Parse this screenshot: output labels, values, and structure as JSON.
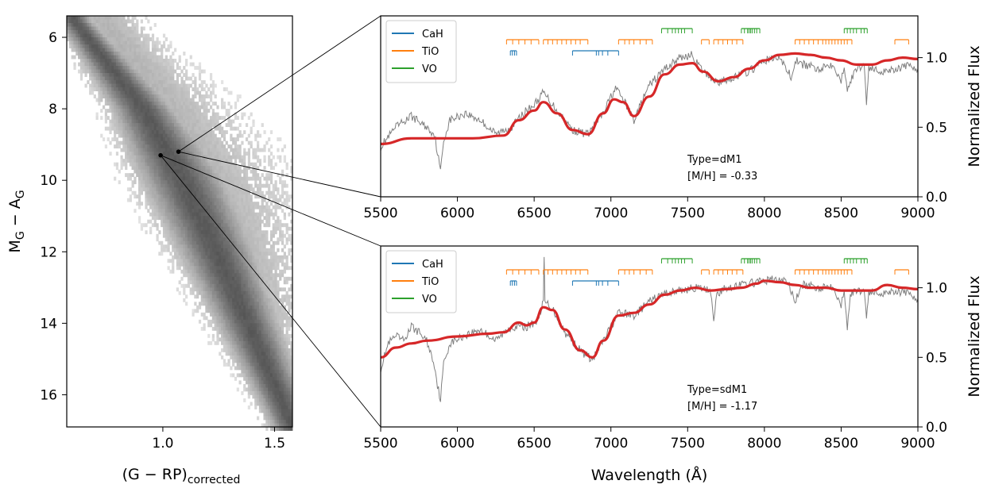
{
  "chart_data": [
    {
      "type": "heatmap",
      "name": "color-magnitude-diagram",
      "xlabel_main": "(G − RP)",
      "xlabel_sub": "corrected",
      "ylabel_main": "M",
      "ylabel_sub1": "G",
      "ylabel_mid": " − A",
      "ylabel_sub2": "G",
      "xlim": [
        0.57,
        1.58
      ],
      "ylim": [
        16.9,
        5.4
      ],
      "xticks": [
        "1.0",
        "1.5"
      ],
      "xtick_values": [
        1.0,
        1.5
      ],
      "yticks": [
        "6",
        "8",
        "10",
        "12",
        "14",
        "16"
      ],
      "ytick_values": [
        6,
        8,
        10,
        12,
        14,
        16
      ],
      "highlight_points": [
        {
          "label": "dM1",
          "x": 1.07,
          "y": 9.2
        },
        {
          "label": "sdM1",
          "x": 0.99,
          "y": 9.3
        }
      ],
      "density_ridge": [
        {
          "mag": 5.5,
          "color": 0.6,
          "width": 0.05
        },
        {
          "mag": 8.0,
          "color": 0.91,
          "width": 0.09
        },
        {
          "mag": 10.0,
          "color": 1.09,
          "width": 0.12
        },
        {
          "mag": 12.0,
          "color": 1.24,
          "width": 0.11
        },
        {
          "mag": 14.0,
          "color": 1.38,
          "width": 0.09
        },
        {
          "mag": 16.0,
          "color": 1.52,
          "width": 0.07
        },
        {
          "mag": 16.9,
          "color": 1.58,
          "width": 0.06
        }
      ]
    },
    {
      "type": "line",
      "name": "spectrum-dM1",
      "xlim": [
        5500,
        9000
      ],
      "ylim": [
        0,
        1.3
      ],
      "xticks": [
        "5500",
        "6000",
        "6500",
        "7000",
        "7500",
        "8000",
        "8500",
        "9000"
      ],
      "xtick_values": [
        5500,
        6000,
        6500,
        7000,
        7500,
        8000,
        8500,
        9000
      ],
      "yticks": [
        "0.0",
        "0.5",
        "1.0"
      ],
      "ytick_values": [
        0,
        0.5,
        1.0
      ],
      "ylabel": "Normalized Flux",
      "annotation_type": "Type=dM1",
      "annotation_metal_label": "[M/H]",
      "annotation_metal_value": " = -0.33",
      "template_series": {
        "name": "template",
        "color": "#d62728",
        "x": [
          5500,
          5700,
          5900,
          6100,
          6300,
          6400,
          6500,
          6560,
          6650,
          6750,
          6850,
          6950,
          7020,
          7080,
          7150,
          7250,
          7350,
          7450,
          7530,
          7600,
          7700,
          7800,
          7900,
          8000,
          8100,
          8200,
          8300,
          8400,
          8500,
          8600,
          8700,
          8800,
          8900,
          9000
        ],
        "y": [
          0.38,
          0.42,
          0.42,
          0.42,
          0.44,
          0.55,
          0.62,
          0.68,
          0.6,
          0.48,
          0.45,
          0.6,
          0.7,
          0.68,
          0.58,
          0.72,
          0.88,
          0.95,
          0.96,
          0.9,
          0.83,
          0.86,
          0.92,
          0.98,
          1.02,
          1.03,
          1.02,
          1.0,
          0.98,
          0.95,
          0.95,
          0.98,
          1.0,
          0.99
        ]
      },
      "observed_series": {
        "name": "observed",
        "color": "#808080",
        "x": [
          5500,
          5600,
          5700,
          5800,
          5850,
          5870,
          5890,
          5910,
          5950,
          6050,
          6150,
          6250,
          6350,
          6450,
          6500,
          6560,
          6650,
          6750,
          6850,
          6950,
          7000,
          7030,
          7080,
          7150,
          7250,
          7350,
          7450,
          7530,
          7560,
          7600,
          7700,
          7800,
          7900,
          8000,
          8100,
          8180,
          8200,
          8250,
          8350,
          8450,
          8500,
          8520,
          8540,
          8600,
          8650,
          8665,
          8680,
          8750,
          8850,
          8950,
          9000
        ],
        "y": [
          0.36,
          0.5,
          0.58,
          0.5,
          0.45,
          0.32,
          0.18,
          0.4,
          0.55,
          0.6,
          0.55,
          0.45,
          0.5,
          0.62,
          0.66,
          0.75,
          0.62,
          0.48,
          0.45,
          0.6,
          0.72,
          0.78,
          0.7,
          0.55,
          0.8,
          0.92,
          1.0,
          1.02,
          0.96,
          0.9,
          0.82,
          0.86,
          0.9,
          0.98,
          1.0,
          0.85,
          0.98,
          0.95,
          0.92,
          0.96,
          0.82,
          0.95,
          0.78,
          0.92,
          0.95,
          0.68,
          0.93,
          0.9,
          0.92,
          0.94,
          0.92
        ]
      },
      "line_markers": {
        "CaH": {
          "color": "#1f77b4",
          "row": 3,
          "bands": [
            [
              6345,
              6385
            ],
            [
              6750,
              7050
            ]
          ],
          "ticks": [
            6345,
            6358,
            6372,
            6385,
            6750,
            6905,
            6920,
            6945,
            6980,
            7050
          ]
        },
        "TiO": {
          "color": "#ff7f0e",
          "row": 2,
          "bands": [
            [
              6320,
              6530
            ],
            [
              6560,
              6850
            ],
            [
              7050,
              7270
            ],
            [
              7590,
              7640
            ],
            [
              7670,
              7860
            ],
            [
              8200,
              8570
            ],
            [
              8850,
              8940
            ]
          ],
          "ticks": [
            6320,
            6360,
            6400,
            6440,
            6480,
            6530,
            6560,
            6590,
            6620,
            6650,
            6680,
            6710,
            6740,
            6770,
            6800,
            6850,
            7050,
            7090,
            7120,
            7150,
            7190,
            7230,
            7270,
            7590,
            7640,
            7670,
            7700,
            7730,
            7760,
            7790,
            7820,
            7860,
            8200,
            8230,
            8260,
            8290,
            8320,
            8350,
            8380,
            8400,
            8420,
            8440,
            8460,
            8480,
            8500,
            8520,
            8540,
            8570,
            8850,
            8940
          ]
        },
        "VO": {
          "color": "#2ca02c",
          "row": 1,
          "bands": [
            [
              7330,
              7530
            ],
            [
              7850,
              7970
            ],
            [
              8520,
              8670
            ]
          ],
          "ticks": [
            7330,
            7370,
            7400,
            7420,
            7440,
            7460,
            7480,
            7530,
            7850,
            7870,
            7890,
            7900,
            7910,
            7920,
            7935,
            7950,
            7970,
            8520,
            8540,
            8560,
            8580,
            8600,
            8630,
            8650,
            8670
          ]
        }
      }
    },
    {
      "type": "line",
      "name": "spectrum-sdM1",
      "xlim": [
        5500,
        9000
      ],
      "ylim": [
        0,
        1.3
      ],
      "xticks": [
        "5500",
        "6000",
        "6500",
        "7000",
        "7500",
        "8000",
        "8500",
        "9000"
      ],
      "xtick_values": [
        5500,
        6000,
        6500,
        7000,
        7500,
        8000,
        8500,
        9000
      ],
      "yticks": [
        "0.0",
        "0.5",
        "1.0"
      ],
      "ytick_values": [
        0,
        0.5,
        1.0
      ],
      "ylabel": "Normalized Flux",
      "xlabel": "Wavelength (Å)",
      "annotation_type": "Type=sdM1",
      "annotation_metal_label": "[M/H]",
      "annotation_metal_value": " = -1.17",
      "template_series": {
        "name": "template",
        "color": "#d62728",
        "x": [
          5500,
          5600,
          5700,
          5800,
          6000,
          6200,
          6300,
          6400,
          6450,
          6500,
          6560,
          6620,
          6700,
          6800,
          6880,
          6950,
          7050,
          7150,
          7250,
          7350,
          7450,
          7550,
          7650,
          7750,
          7850,
          7950,
          8000,
          8100,
          8200,
          8300,
          8400,
          8500,
          8600,
          8700,
          8800,
          8900,
          9000
        ],
        "y": [
          0.5,
          0.57,
          0.6,
          0.62,
          0.65,
          0.67,
          0.68,
          0.75,
          0.73,
          0.75,
          0.86,
          0.84,
          0.7,
          0.55,
          0.5,
          0.62,
          0.8,
          0.82,
          0.88,
          0.95,
          0.98,
          1.0,
          0.98,
          0.99,
          1.0,
          1.03,
          1.05,
          1.04,
          1.02,
          1.0,
          1.0,
          0.98,
          0.98,
          0.98,
          1.02,
          1.0,
          0.99
        ]
      },
      "observed_series": {
        "name": "observed",
        "color": "#808080",
        "x": [
          5500,
          5550,
          5600,
          5650,
          5700,
          5750,
          5800,
          5850,
          5870,
          5890,
          5910,
          5950,
          6050,
          6150,
          6250,
          6350,
          6450,
          6520,
          6560,
          6565,
          6570,
          6620,
          6700,
          6800,
          6880,
          6950,
          7050,
          7150,
          7250,
          7350,
          7450,
          7550,
          7650,
          7670,
          7690,
          7750,
          7850,
          7950,
          8050,
          8150,
          8200,
          8250,
          8350,
          8450,
          8500,
          8520,
          8540,
          8560,
          8600,
          8650,
          8665,
          8680,
          8750,
          8850,
          8950,
          9000
        ],
        "y": [
          0.42,
          0.6,
          0.65,
          0.62,
          0.72,
          0.68,
          0.62,
          0.45,
          0.3,
          0.2,
          0.45,
          0.6,
          0.66,
          0.7,
          0.62,
          0.72,
          0.72,
          0.76,
          0.9,
          1.22,
          0.9,
          0.85,
          0.68,
          0.55,
          0.48,
          0.62,
          0.82,
          0.8,
          0.9,
          0.96,
          0.98,
          1.0,
          0.98,
          0.78,
          0.95,
          1.0,
          1.02,
          1.04,
          1.06,
          1.05,
          0.9,
          1.02,
          1.0,
          1.02,
          0.86,
          1.0,
          0.72,
          0.95,
          0.98,
          0.98,
          0.8,
          0.97,
          0.96,
          0.98,
          0.95,
          0.92
        ]
      },
      "line_markers": {
        "CaH": {
          "color": "#1f77b4",
          "row": 3,
          "bands": [
            [
              6345,
              6385
            ],
            [
              6750,
              7050
            ]
          ],
          "ticks": [
            6345,
            6358,
            6372,
            6385,
            6750,
            6905,
            6920,
            6945,
            6980,
            7050
          ]
        },
        "TiO": {
          "color": "#ff7f0e",
          "row": 2,
          "bands": [
            [
              6320,
              6530
            ],
            [
              6560,
              6850
            ],
            [
              7050,
              7270
            ],
            [
              7590,
              7640
            ],
            [
              7670,
              7860
            ],
            [
              8200,
              8570
            ],
            [
              8850,
              8940
            ]
          ],
          "ticks": [
            6320,
            6360,
            6400,
            6440,
            6480,
            6530,
            6560,
            6590,
            6620,
            6650,
            6680,
            6710,
            6740,
            6770,
            6800,
            6850,
            7050,
            7090,
            7120,
            7150,
            7190,
            7230,
            7270,
            7590,
            7640,
            7670,
            7700,
            7730,
            7760,
            7790,
            7820,
            7860,
            8200,
            8230,
            8260,
            8290,
            8320,
            8350,
            8380,
            8400,
            8420,
            8440,
            8460,
            8480,
            8500,
            8520,
            8540,
            8570,
            8850,
            8940
          ]
        },
        "VO": {
          "color": "#2ca02c",
          "row": 1,
          "bands": [
            [
              7330,
              7530
            ],
            [
              7850,
              7970
            ],
            [
              8520,
              8670
            ]
          ],
          "ticks": [
            7330,
            7370,
            7400,
            7420,
            7440,
            7460,
            7480,
            7530,
            7850,
            7870,
            7890,
            7900,
            7910,
            7920,
            7935,
            7950,
            7970,
            8520,
            8540,
            8560,
            8580,
            8600,
            8630,
            8650,
            8670
          ]
        }
      }
    }
  ],
  "legend": [
    {
      "label": "CaH",
      "color": "#1f77b4"
    },
    {
      "label": "TiO",
      "color": "#ff7f0e"
    },
    {
      "label": "VO",
      "color": "#2ca02c"
    }
  ]
}
